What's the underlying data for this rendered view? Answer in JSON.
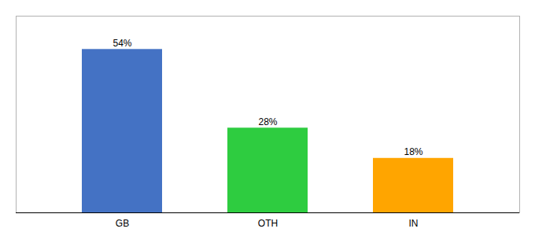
{
  "chart_data": {
    "type": "bar",
    "categories": [
      "GB",
      "OTH",
      "IN"
    ],
    "values": [
      54,
      28,
      18
    ],
    "value_labels": [
      "54%",
      "28%",
      "18%"
    ],
    "colors": [
      "#4472C4",
      "#2ECC40",
      "#FFA500"
    ],
    "ylim": [
      0,
      65
    ],
    "data_labels": true,
    "tick_labels": "x"
  }
}
